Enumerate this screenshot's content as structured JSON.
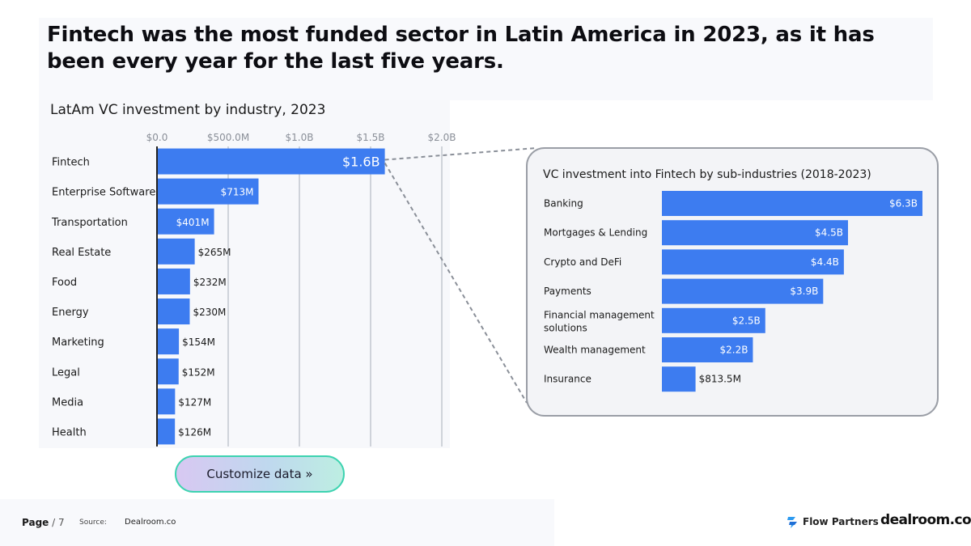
{
  "title": "Fintech was the most funded sector in Latin America in 2023, as it has been every year for the last five years.",
  "colors": {
    "bar": "#3d7cf0",
    "axis": "#222222",
    "grid": "#cfd3da",
    "tick": "#8a8f98",
    "text": "#1a1a1a",
    "connector": "#8a8f98"
  },
  "chart_data": [
    {
      "type": "bar",
      "orientation": "horizontal",
      "title": "LatAm VC investment by industry, 2023",
      "xlim": [
        0,
        2000000000
      ],
      "xticks": [
        0,
        500000000,
        1000000000,
        1500000000,
        2000000000
      ],
      "xtick_labels": [
        "$0.0",
        "$500.0M",
        "$1.0B",
        "$1.5B",
        "$2.0B"
      ],
      "grid": true,
      "categories": [
        "Fintech",
        "Enterprise Software",
        "Transportation",
        "Real Estate",
        "Food",
        "Energy",
        "Marketing",
        "Legal",
        "Media",
        "Health"
      ],
      "values": [
        1600000000,
        713000000,
        401000000,
        265000000,
        232000000,
        230000000,
        154000000,
        152000000,
        127000000,
        126000000
      ],
      "value_labels": [
        "$1.6B",
        "$713M",
        "$401M",
        "$265M",
        "$232M",
        "$230M",
        "$154M",
        "$152M",
        "$127M",
        "$126M"
      ]
    },
    {
      "type": "bar",
      "orientation": "horizontal",
      "title": "VC investment into Fintech by sub-industries (2018-2023)",
      "xlim": [
        0,
        6300000000
      ],
      "grid": false,
      "categories": [
        "Banking",
        "Mortgages & Lending",
        "Crypto and DeFi",
        "Payments",
        "Financial management solutions",
        "Wealth management",
        "Insurance"
      ],
      "values": [
        6300000000,
        4500000000,
        4400000000,
        3900000000,
        2500000000,
        2200000000,
        813500000
      ],
      "value_labels": [
        "$6.3B",
        "$4.5B",
        "$4.4B",
        "$3.9B",
        "$2.5B",
        "$2.2B",
        "$813.5M"
      ]
    }
  ],
  "cta": {
    "label": "Customize data »"
  },
  "footer": {
    "page_label": "Page",
    "page_number": "/ 7",
    "source_label": "Source:",
    "source": "Dealroom.co",
    "brand_flow": "Flow Partners",
    "brand_dealroom": "dealroom.co"
  }
}
